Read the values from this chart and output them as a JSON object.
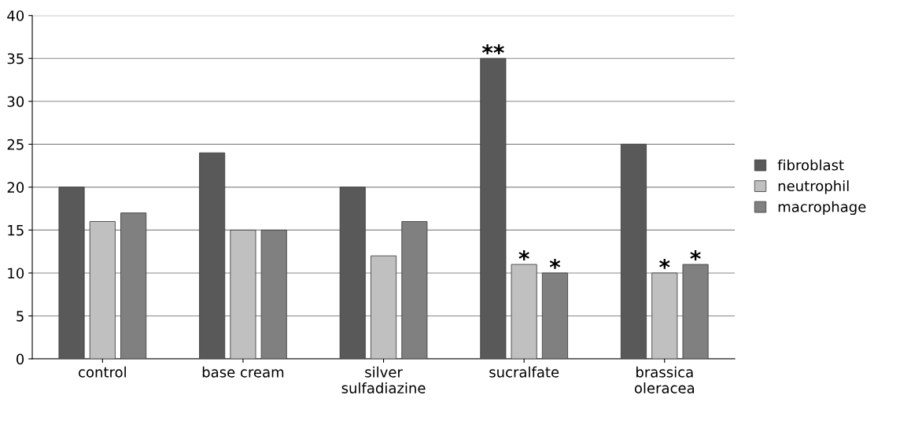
{
  "chart_data": {
    "type": "bar",
    "categories": [
      "control",
      "base cream",
      "silver\nsulfadiazine",
      "sucralfate",
      "brassica\noleracea"
    ],
    "series": [
      {
        "name": "fibroblast",
        "color": "#595959",
        "values": [
          20,
          24,
          20,
          35,
          25
        ],
        "value_labels": [
          null,
          null,
          null,
          "**",
          null
        ]
      },
      {
        "name": "neutrophil",
        "color": "#c0c0c0",
        "values": [
          16,
          15,
          12,
          11,
          10
        ],
        "value_labels": [
          null,
          null,
          null,
          "*",
          "*"
        ]
      },
      {
        "name": "macrophage",
        "color": "#808080",
        "values": [
          17,
          15,
          16,
          10,
          11
        ],
        "value_labels": [
          null,
          null,
          null,
          "*",
          "*"
        ]
      }
    ],
    "ylim": [
      0,
      40
    ],
    "yticks": [
      0,
      5,
      10,
      15,
      20,
      25,
      30,
      35,
      40
    ],
    "grid": "y",
    "legend": "right"
  }
}
